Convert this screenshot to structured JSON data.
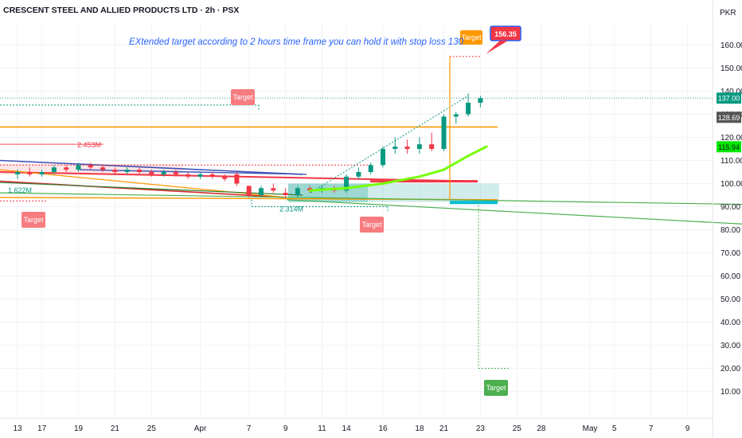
{
  "chart_data": {
    "type": "candlestick",
    "title": "CRESCENT STEEL AND ALLIED PRODUCTS LTD · 2h · PSX",
    "currency": "PKR",
    "annotation": "EXtended target according to 2 hours time frame you can hold it with stop loss  130",
    "y_axis": {
      "range": [
        5,
        170
      ],
      "ticks": [
        "160.00",
        "150.00",
        "140.00",
        "130.00",
        "120.00",
        "110.00",
        "100.00",
        "90.00",
        "80.00",
        "70.00",
        "60.00",
        "50.00",
        "40.00",
        "30.00",
        "20.00",
        "10.00"
      ],
      "tick_values": [
        160,
        150,
        140,
        130,
        120,
        110,
        100,
        90,
        80,
        70,
        60,
        50,
        40,
        30,
        20,
        10
      ]
    },
    "x_axis": {
      "ticks": [
        {
          "label": "13",
          "i": 0
        },
        {
          "label": "17",
          "i": 2
        },
        {
          "label": "19",
          "i": 5
        },
        {
          "label": "21",
          "i": 8
        },
        {
          "label": "25",
          "i": 11
        },
        {
          "label": "Apr",
          "i": 15
        },
        {
          "label": "7",
          "i": 19
        },
        {
          "label": "9",
          "i": 22
        },
        {
          "label": "11",
          "i": 25
        },
        {
          "label": "14",
          "i": 27
        },
        {
          "label": "16",
          "i": 30
        },
        {
          "label": "18",
          "i": 33
        },
        {
          "label": "21",
          "i": 35
        },
        {
          "label": "23",
          "i": 38
        },
        {
          "label": "25",
          "i": 41
        },
        {
          "label": "28",
          "i": 43
        },
        {
          "label": "May",
          "i": 47
        },
        {
          "label": "5",
          "i": 49
        },
        {
          "label": "7",
          "i": 52
        },
        {
          "label": "9",
          "i": 55
        }
      ]
    },
    "price_labels": [
      {
        "text": "156.35",
        "value": 156.35,
        "color": "#f23645"
      },
      {
        "text": "137.00",
        "value": 137.0,
        "color": "#089981"
      },
      {
        "text": "128.69",
        "value": 128.69,
        "color": "#555555"
      },
      {
        "text": "115.94",
        "value": 115.94,
        "color": "#00e600"
      }
    ],
    "volume_labels": [
      {
        "text": "2.453M",
        "color": "#f23645"
      },
      {
        "text": "1.622M",
        "color": "#089981"
      },
      {
        "text": "2.314M",
        "color": "#089981"
      }
    ],
    "target_labels": [
      {
        "text": "Target",
        "color": "#f77c80"
      },
      {
        "text": "Target",
        "color": "#f77c80"
      },
      {
        "text": "Target",
        "color": "#f77c80"
      },
      {
        "text": "Target",
        "color": "#ff9800"
      },
      {
        "text": "Target",
        "color": "#4caf50"
      }
    ],
    "candles": [
      {
        "i": 0,
        "o": 104,
        "h": 106,
        "l": 102,
        "c": 105
      },
      {
        "i": 1,
        "o": 105,
        "h": 107,
        "l": 103,
        "c": 104
      },
      {
        "i": 2,
        "o": 104,
        "h": 106,
        "l": 103,
        "c": 105
      },
      {
        "i": 3,
        "o": 105,
        "h": 108,
        "l": 104,
        "c": 107
      },
      {
        "i": 4,
        "o": 107,
        "h": 108,
        "l": 105,
        "c": 106
      },
      {
        "i": 5,
        "o": 106,
        "h": 109,
        "l": 105,
        "c": 108
      },
      {
        "i": 6,
        "o": 108,
        "h": 109,
        "l": 106,
        "c": 107
      },
      {
        "i": 7,
        "o": 107,
        "h": 108,
        "l": 105,
        "c": 106
      },
      {
        "i": 8,
        "o": 106,
        "h": 107,
        "l": 104,
        "c": 105
      },
      {
        "i": 9,
        "o": 105,
        "h": 107,
        "l": 104,
        "c": 106
      },
      {
        "i": 10,
        "o": 106,
        "h": 107,
        "l": 104,
        "c": 105
      },
      {
        "i": 11,
        "o": 105,
        "h": 106,
        "l": 103,
        "c": 104
      },
      {
        "i": 12,
        "o": 104,
        "h": 106,
        "l": 103,
        "c": 105
      },
      {
        "i": 13,
        "o": 105,
        "h": 106,
        "l": 103,
        "c": 104
      },
      {
        "i": 14,
        "o": 104,
        "h": 105,
        "l": 102,
        "c": 103
      },
      {
        "i": 15,
        "o": 103,
        "h": 105,
        "l": 102,
        "c": 104
      },
      {
        "i": 16,
        "o": 104,
        "h": 105,
        "l": 102,
        "c": 103
      },
      {
        "i": 17,
        "o": 103,
        "h": 104,
        "l": 101,
        "c": 102
      },
      {
        "i": 18,
        "o": 104,
        "h": 105,
        "l": 99,
        "c": 100
      },
      {
        "i": 19,
        "o": 99,
        "h": 99,
        "l": 94,
        "c": 95
      },
      {
        "i": 20,
        "o": 95,
        "h": 99,
        "l": 94,
        "c": 98
      },
      {
        "i": 21,
        "o": 98,
        "h": 100,
        "l": 96,
        "c": 97
      },
      {
        "i": 22,
        "o": 96,
        "h": 98,
        "l": 94,
        "c": 95
      },
      {
        "i": 23,
        "o": 95,
        "h": 99,
        "l": 94,
        "c": 98
      },
      {
        "i": 24,
        "o": 98,
        "h": 99,
        "l": 96,
        "c": 97
      },
      {
        "i": 25,
        "o": 97,
        "h": 99,
        "l": 96,
        "c": 98
      },
      {
        "i": 26,
        "o": 98,
        "h": 99,
        "l": 96,
        "c": 97
      },
      {
        "i": 27,
        "o": 97,
        "h": 104,
        "l": 96,
        "c": 103
      },
      {
        "i": 28,
        "o": 103,
        "h": 107,
        "l": 102,
        "c": 105
      },
      {
        "i": 29,
        "o": 105,
        "h": 109,
        "l": 104,
        "c": 108
      },
      {
        "i": 30,
        "o": 108,
        "h": 116,
        "l": 107,
        "c": 115
      },
      {
        "i": 31,
        "o": 115,
        "h": 120,
        "l": 113,
        "c": 116
      },
      {
        "i": 32,
        "o": 116,
        "h": 119,
        "l": 113,
        "c": 115
      },
      {
        "i": 33,
        "o": 115,
        "h": 120,
        "l": 113,
        "c": 117
      },
      {
        "i": 34,
        "o": 117,
        "h": 122,
        "l": 114,
        "c": 115
      },
      {
        "i": 35,
        "o": 115,
        "h": 130,
        "l": 114,
        "c": 129
      },
      {
        "i": 36,
        "o": 129,
        "h": 131,
        "l": 126,
        "c": 130
      },
      {
        "i": 37,
        "o": 130,
        "h": 139,
        "l": 129,
        "c": 135
      },
      {
        "i": 38,
        "o": 135,
        "h": 138,
        "l": 133,
        "c": 137
      }
    ],
    "ema": [
      {
        "i": 24,
        "v": 97
      },
      {
        "i": 27,
        "v": 98
      },
      {
        "i": 30,
        "v": 100
      },
      {
        "i": 33,
        "v": 103
      },
      {
        "i": 35,
        "v": 106
      },
      {
        "i": 37,
        "v": 112
      },
      {
        "i": 38.5,
        "v": 116
      }
    ]
  }
}
